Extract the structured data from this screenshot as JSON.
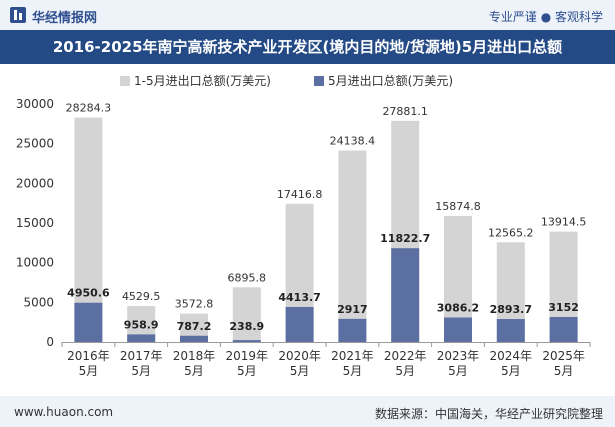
{
  "header": {
    "brand": "华经情报网",
    "tagline": "专业严谨 ● 客观科学"
  },
  "chart_data": {
    "type": "bar",
    "title": "2016-2025年南宁高新技术产业开发区(境内目的地/货源地)5月进出口总额",
    "categories": [
      "2016年\n5月",
      "2017年\n5月",
      "2018年\n5月",
      "2019年\n5月",
      "2020年\n5月",
      "2021年\n5月",
      "2022年\n5月",
      "2023年\n5月",
      "2024年\n5月",
      "2025年\n5月"
    ],
    "series": [
      {
        "name": "1-5月进出口总额(万美元)",
        "color": "#d4d4d4",
        "values": [
          28284.3,
          4529.5,
          3572.8,
          6895.8,
          17416.8,
          24138.4,
          27881.1,
          15874.8,
          12565.2,
          13914.5
        ]
      },
      {
        "name": "5月进出口总额(万美元)",
        "color": "#5b6fa3",
        "values": [
          4950.6,
          958.9,
          787.2,
          238.9,
          4413.7,
          2917,
          11822.7,
          3086.2,
          2893.7,
          3152
        ]
      }
    ],
    "yticks": [
      0,
      5000,
      10000,
      15000,
      20000,
      25000,
      30000
    ],
    "ylim": [
      0,
      30000
    ],
    "legend_position": "top",
    "grid": false
  },
  "footer": {
    "site": "www.huaon.com",
    "source": "数据来源：中国海关，华经产业研究院整理"
  }
}
